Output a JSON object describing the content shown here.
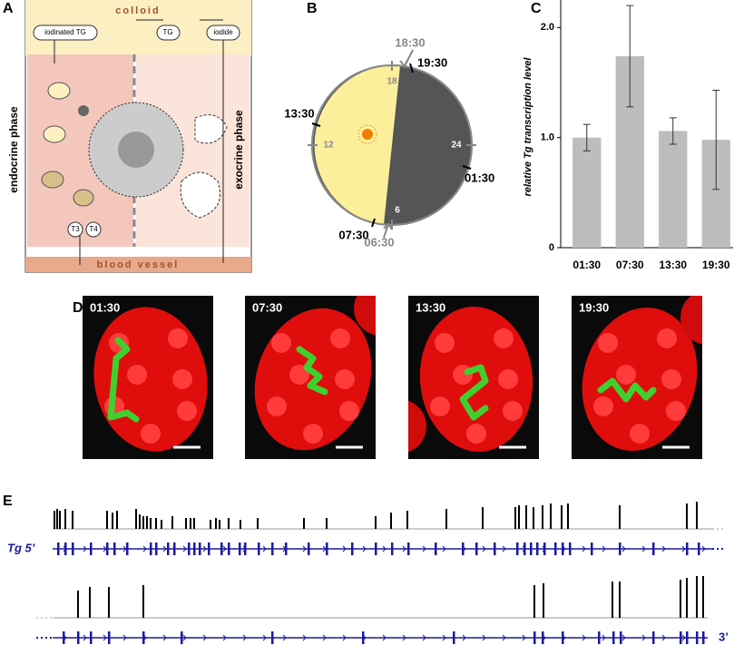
{
  "panels": {
    "a": "A",
    "b": "B",
    "c": "C",
    "d": "D",
    "e": "E"
  },
  "panel_a": {
    "colloid": "colloid",
    "iodinated_tg": "iodinated TG",
    "tg": "TG",
    "iodide": "iodide",
    "endocrine": "endocrine phase",
    "exocrine": "exocrine phase",
    "t3": "T3",
    "t4": "T4",
    "blood_vessel": "blood vessel"
  },
  "panel_b": {
    "t1830": "18:30",
    "t1930": "19:30",
    "t1330": "13:30",
    "t0130": "01:30",
    "t0730": "07:30",
    "t0630": "06:30",
    "h18": "18",
    "h12": "12",
    "h24": "24",
    "h6": "6"
  },
  "chart_data": {
    "type": "bar",
    "ylabel": "relative Tg transcription level",
    "categories": [
      "01:30",
      "07:30",
      "13:30",
      "19:30"
    ],
    "values": [
      1.0,
      1.74,
      1.06,
      0.98
    ],
    "errors": [
      0.12,
      0.46,
      0.12,
      0.45
    ],
    "color": "#bdbdbd",
    "ylim": [
      0,
      2.25
    ],
    "yticks": [
      0,
      {
        "value": 1,
        "label": "1.0"
      },
      {
        "value": 2,
        "label": "2.0"
      }
    ]
  },
  "panel_d": {
    "labels": [
      "01:30",
      "07:30",
      "13:30",
      "19:30"
    ]
  },
  "panel_e": {
    "gene": "Tg 5’",
    "end": "3’"
  }
}
